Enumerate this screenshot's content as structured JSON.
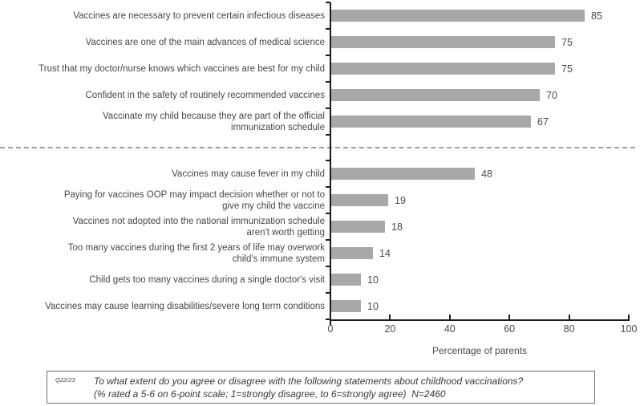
{
  "chart_data": {
    "type": "bar",
    "orientation": "horizontal",
    "title": "",
    "xlabel": "Percentage of parents",
    "ylabel": "",
    "xlim": [
      0,
      100
    ],
    "x_ticks": [
      0,
      20,
      40,
      60,
      80,
      100
    ],
    "bar_color": "#a8a8a8",
    "grid": false,
    "legend": "none",
    "divider_style": "dashed line separating agreement statements from concern statements",
    "groups": [
      {
        "name": "agreement-statements",
        "items": [
          {
            "label": "Vaccines are necessary to prevent certain infectious diseases",
            "value": 85
          },
          {
            "label": "Vaccines are one of the main advances of medical science",
            "value": 75
          },
          {
            "label": "Trust that my doctor/nurse knows which vaccines are best for my child",
            "value": 75
          },
          {
            "label": "Confident in the safety of routinely recommended vaccines",
            "value": 70
          },
          {
            "label": "Vaccinate my child because they are part of the official\nimmunization schedule",
            "value": 67
          }
        ]
      },
      {
        "name": "concern-statements",
        "items": [
          {
            "label": "Vaccines may cause fever in my child",
            "value": 48
          },
          {
            "label": "Paying for vaccines OOP may impact decision whether or not to\ngive my child the vaccine",
            "value": 19
          },
          {
            "label": "Vaccines not adopted into the national immunization schedule\naren't worth getting",
            "value": 18
          },
          {
            "label": "Too many vaccines during the first 2 years of life may overwork\nchild's immune system",
            "value": 14
          },
          {
            "label": "Child gets too many vaccines during a single doctor's visit",
            "value": 10
          },
          {
            "label": "Vaccines may cause learning disabilities/severe long term conditions",
            "value": 10
          }
        ]
      }
    ]
  },
  "footnote": {
    "question_id": "Q22/23",
    "line1": "To what extent do you agree or disagree with the following statements about childhood vaccinations?",
    "line2": "(% rated a 5-6 on 6-point scale; 1=strongly disagree, to 6=strongly agree)  N=2460"
  }
}
